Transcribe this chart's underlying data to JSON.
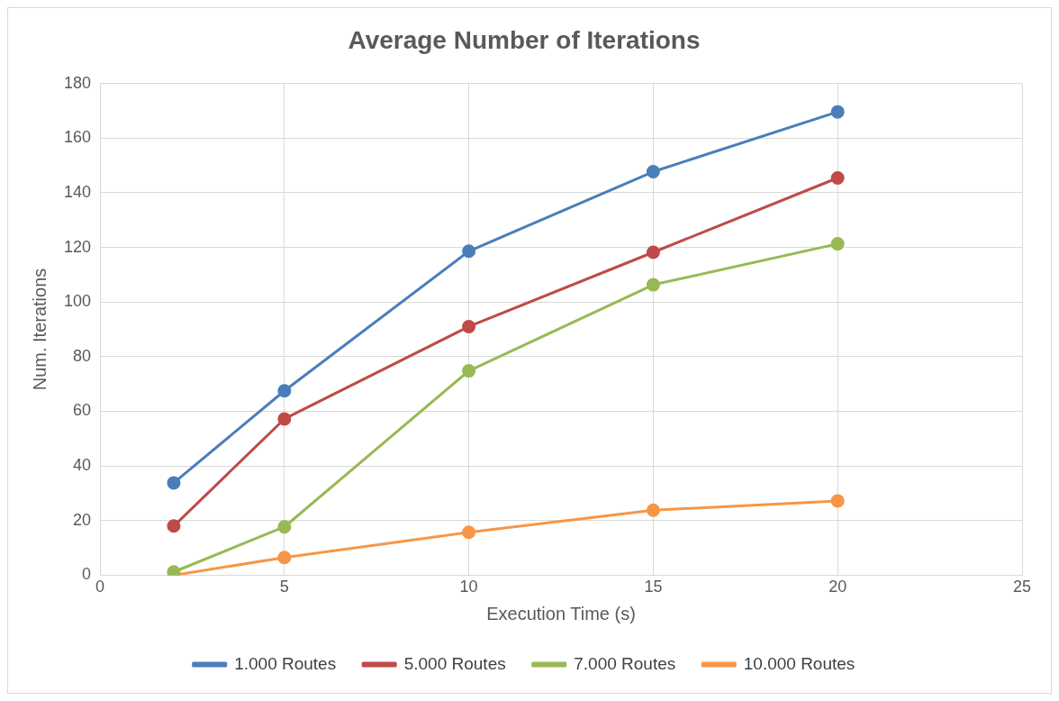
{
  "chart_data": {
    "type": "line",
    "title": "Average Number of Iterations",
    "xlabel": "Execution Time (s)",
    "ylabel": "Num. Iterations",
    "x": [
      2,
      5,
      10,
      15,
      20
    ],
    "series": [
      {
        "name": "1.000 Routes",
        "color": "#4a7ebb",
        "values": [
          33.8,
          67.5,
          118.6,
          147.7,
          169.6
        ]
      },
      {
        "name": "5.000 Routes",
        "color": "#be4b48",
        "values": [
          18,
          57.2,
          91,
          118.2,
          145.4
        ]
      },
      {
        "name": "7.000 Routes",
        "color": "#98b954",
        "values": [
          1.2,
          17.7,
          74.8,
          106.3,
          121.3
        ]
      },
      {
        "name": "10.000 Routes",
        "color": "#f79646",
        "values": [
          0,
          6.5,
          15.7,
          23.8,
          27.2
        ]
      }
    ],
    "xlim": [
      0,
      25
    ],
    "xticks": [
      0,
      5,
      10,
      15,
      20,
      25
    ],
    "ylim": [
      0,
      180
    ],
    "yticks": [
      0,
      20,
      40,
      60,
      80,
      100,
      120,
      140,
      160,
      180
    ],
    "grid": true,
    "legend": "bottom",
    "marker": "circle",
    "line_style": "solid"
  }
}
